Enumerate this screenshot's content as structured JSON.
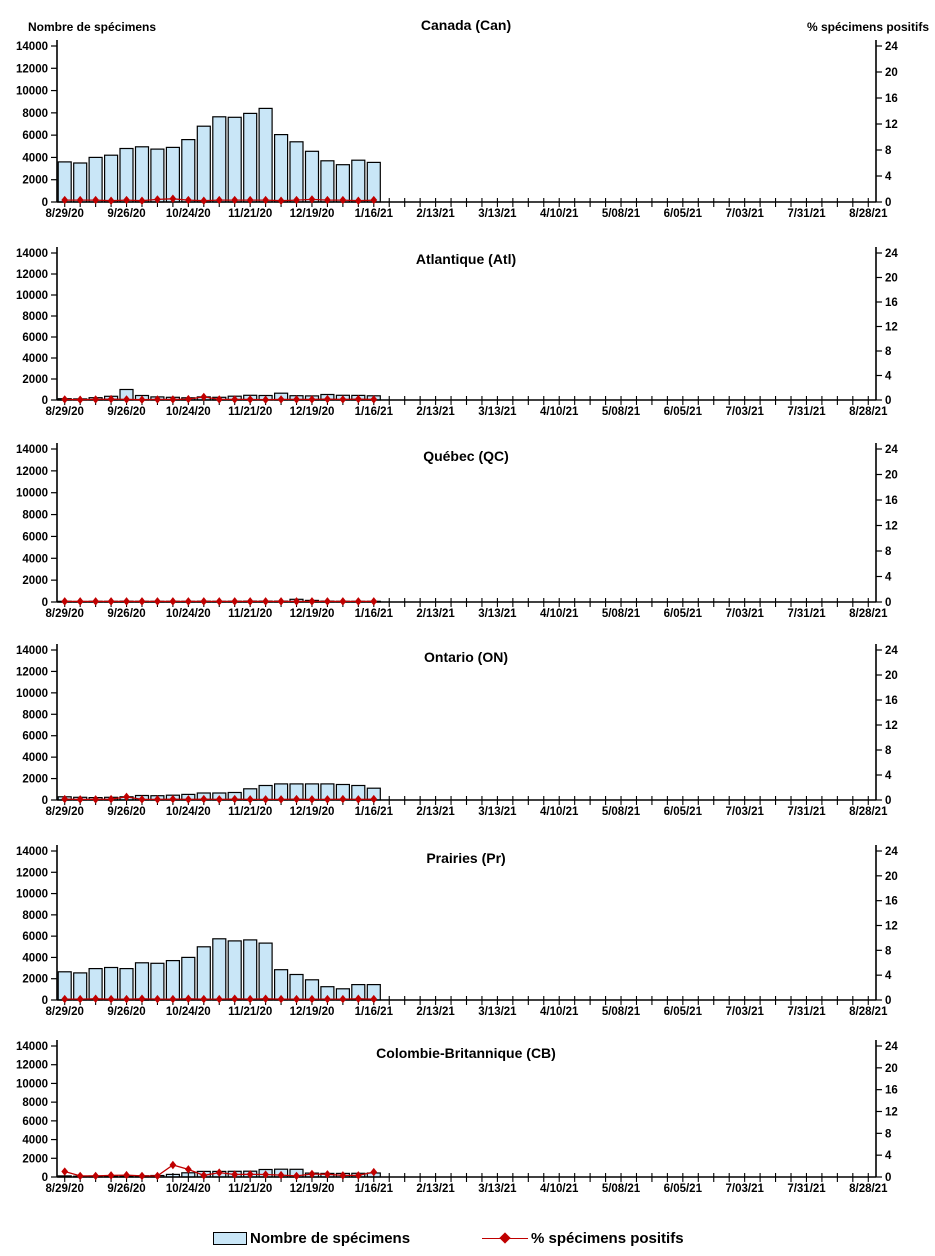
{
  "header": {
    "left_axis_title": "Nombre de spécimens",
    "right_axis_title": "% spécimens positifs"
  },
  "legend": {
    "items": [
      {
        "label": "Nombre de spécimens",
        "swatch": "bar"
      },
      {
        "label": "% spécimens positifs",
        "swatch": "line-diamond"
      }
    ]
  },
  "colors": {
    "bar_fill": "#C9E6F7",
    "bar_stroke": "#000000",
    "line_color": "#C00000",
    "axis_color": "#000000",
    "text_color": "#000000"
  },
  "axes": {
    "x_tick_labels": [
      "8/29/20",
      "9/26/20",
      "10/24/20",
      "11/21/20",
      "12/19/20",
      "1/16/21",
      "2/13/21",
      "3/13/21",
      "4/10/21",
      "5/08/21",
      "6/05/21",
      "7/03/21",
      "7/31/21",
      "8/28/21"
    ],
    "weeks_total": 53,
    "label_every_weeks": 4,
    "left_axis_ticks": [
      0,
      2000,
      4000,
      6000,
      8000,
      10000,
      12000,
      14000
    ],
    "right_axis_ticks": [
      0,
      4,
      8,
      12,
      16,
      20,
      24
    ],
    "left_axis_range": [
      0,
      14000
    ],
    "right_axis_range": [
      0,
      24
    ],
    "grid": false
  },
  "chart_data": [
    {
      "type": "bar",
      "title": "Canada (Can)",
      "data_weeks": [
        "8/29/20 through 1/16/21, weekly"
      ],
      "series": [
        {
          "name": "Nombre de spécimens",
          "type": "bar",
          "axis": "left",
          "values": [
            3600,
            3500,
            4000,
            4200,
            4800,
            4950,
            4750,
            4900,
            5600,
            6800,
            7650,
            7600,
            7950,
            8400,
            6050,
            5400,
            4550,
            3700,
            3350,
            3750,
            3550
          ]
        },
        {
          "name": "% spécimens positifs",
          "type": "line",
          "axis": "right",
          "values": [
            0.3,
            0.3,
            0.3,
            0.2,
            0.3,
            0.2,
            0.4,
            0.5,
            0.3,
            0.2,
            0.3,
            0.3,
            0.3,
            0.3,
            0.2,
            0.3,
            0.4,
            0.3,
            0.3,
            0.2,
            0.3
          ]
        }
      ]
    },
    {
      "type": "bar",
      "title": "Atlantique (Atl)",
      "data_weeks": [
        "8/29/20 through 1/16/21, weekly"
      ],
      "series": [
        {
          "name": "Nombre de spécimens",
          "type": "bar",
          "axis": "left",
          "values": [
            120,
            100,
            220,
            350,
            1000,
            430,
            300,
            260,
            210,
            300,
            260,
            360,
            450,
            430,
            650,
            410,
            390,
            520,
            450,
            440,
            400
          ]
        },
        {
          "name": "% spécimens positifs",
          "type": "line",
          "axis": "right",
          "values": [
            0.1,
            0.05,
            0.1,
            0.15,
            0.1,
            0.05,
            0.1,
            0.1,
            0.15,
            0.5,
            0.1,
            0.1,
            0.1,
            0.05,
            0.1,
            0.1,
            0.1,
            0.15,
            0.1,
            0.15,
            0.1
          ]
        }
      ]
    },
    {
      "type": "bar",
      "title": "Québec (QC)",
      "data_weeks": [
        "8/29/20 through 1/16/21, weekly"
      ],
      "series": [
        {
          "name": "Nombre de spécimens",
          "type": "bar",
          "axis": "left",
          "values": [
            60,
            50,
            60,
            60,
            70,
            60,
            60,
            60,
            60,
            70,
            60,
            70,
            80,
            80,
            80,
            250,
            150,
            80,
            60,
            60,
            60
          ]
        },
        {
          "name": "% spécimens positifs",
          "type": "line",
          "axis": "right",
          "values": [
            0.1,
            0.1,
            0.1,
            0.1,
            0.1,
            0.1,
            0.1,
            0.1,
            0.1,
            0.1,
            0.1,
            0.1,
            0.1,
            0.1,
            0.1,
            0.1,
            0.1,
            0.1,
            0.1,
            0.1,
            0.1
          ]
        }
      ]
    },
    {
      "type": "bar",
      "title": "Ontario (ON)",
      "data_weeks": [
        "8/29/20 through 1/16/21, weekly"
      ],
      "series": [
        {
          "name": "Nombre de spécimens",
          "type": "bar",
          "axis": "left",
          "values": [
            300,
            250,
            220,
            250,
            300,
            420,
            400,
            450,
            520,
            650,
            650,
            700,
            1050,
            1350,
            1500,
            1500,
            1500,
            1500,
            1450,
            1350,
            1100
          ]
        },
        {
          "name": "% spécimens positifs",
          "type": "line",
          "axis": "right",
          "values": [
            0.15,
            0.1,
            0.1,
            0.15,
            0.5,
            0.1,
            0.1,
            0.15,
            0.1,
            0.15,
            0.1,
            0.15,
            0.1,
            0.1,
            0.1,
            0.15,
            0.1,
            0.1,
            0.15,
            0.1,
            0.15
          ]
        }
      ]
    },
    {
      "type": "bar",
      "title": "Prairies (Pr)",
      "data_weeks": [
        "8/29/20 through 1/16/21, weekly"
      ],
      "series": [
        {
          "name": "Nombre de spécimens",
          "type": "bar",
          "axis": "left",
          "values": [
            2650,
            2550,
            2950,
            3050,
            2950,
            3500,
            3450,
            3700,
            4000,
            5000,
            5750,
            5550,
            5650,
            5350,
            2850,
            2400,
            1900,
            1250,
            1050,
            1450,
            1450
          ]
        },
        {
          "name": "% spécimens positifs",
          "type": "line",
          "axis": "right",
          "values": [
            0.15,
            0.15,
            0.2,
            0.15,
            0.15,
            0.2,
            0.15,
            0.15,
            0.2,
            0.15,
            0.15,
            0.2,
            0.15,
            0.2,
            0.15,
            0.15,
            0.15,
            0.15,
            0.15,
            0.2,
            0.15
          ]
        }
      ]
    },
    {
      "type": "bar",
      "title": "Colombie-Britannique (CB)",
      "data_weeks": [
        "8/29/20 through 1/16/21, weekly"
      ],
      "series": [
        {
          "name": "Nombre de spécimens",
          "type": "bar",
          "axis": "left",
          "values": [
            120,
            90,
            110,
            130,
            110,
            130,
            160,
            280,
            450,
            600,
            600,
            610,
            620,
            800,
            830,
            820,
            420,
            380,
            380,
            400,
            430
          ]
        },
        {
          "name": "% spécimens positifs",
          "type": "line",
          "axis": "right",
          "values": [
            1.0,
            0.2,
            0.2,
            0.3,
            0.35,
            0.2,
            0.2,
            2.2,
            1.4,
            0.3,
            0.8,
            0.45,
            0.5,
            0.45,
            0.35,
            0.2,
            0.55,
            0.5,
            0.3,
            0.3,
            0.9
          ]
        }
      ]
    }
  ]
}
